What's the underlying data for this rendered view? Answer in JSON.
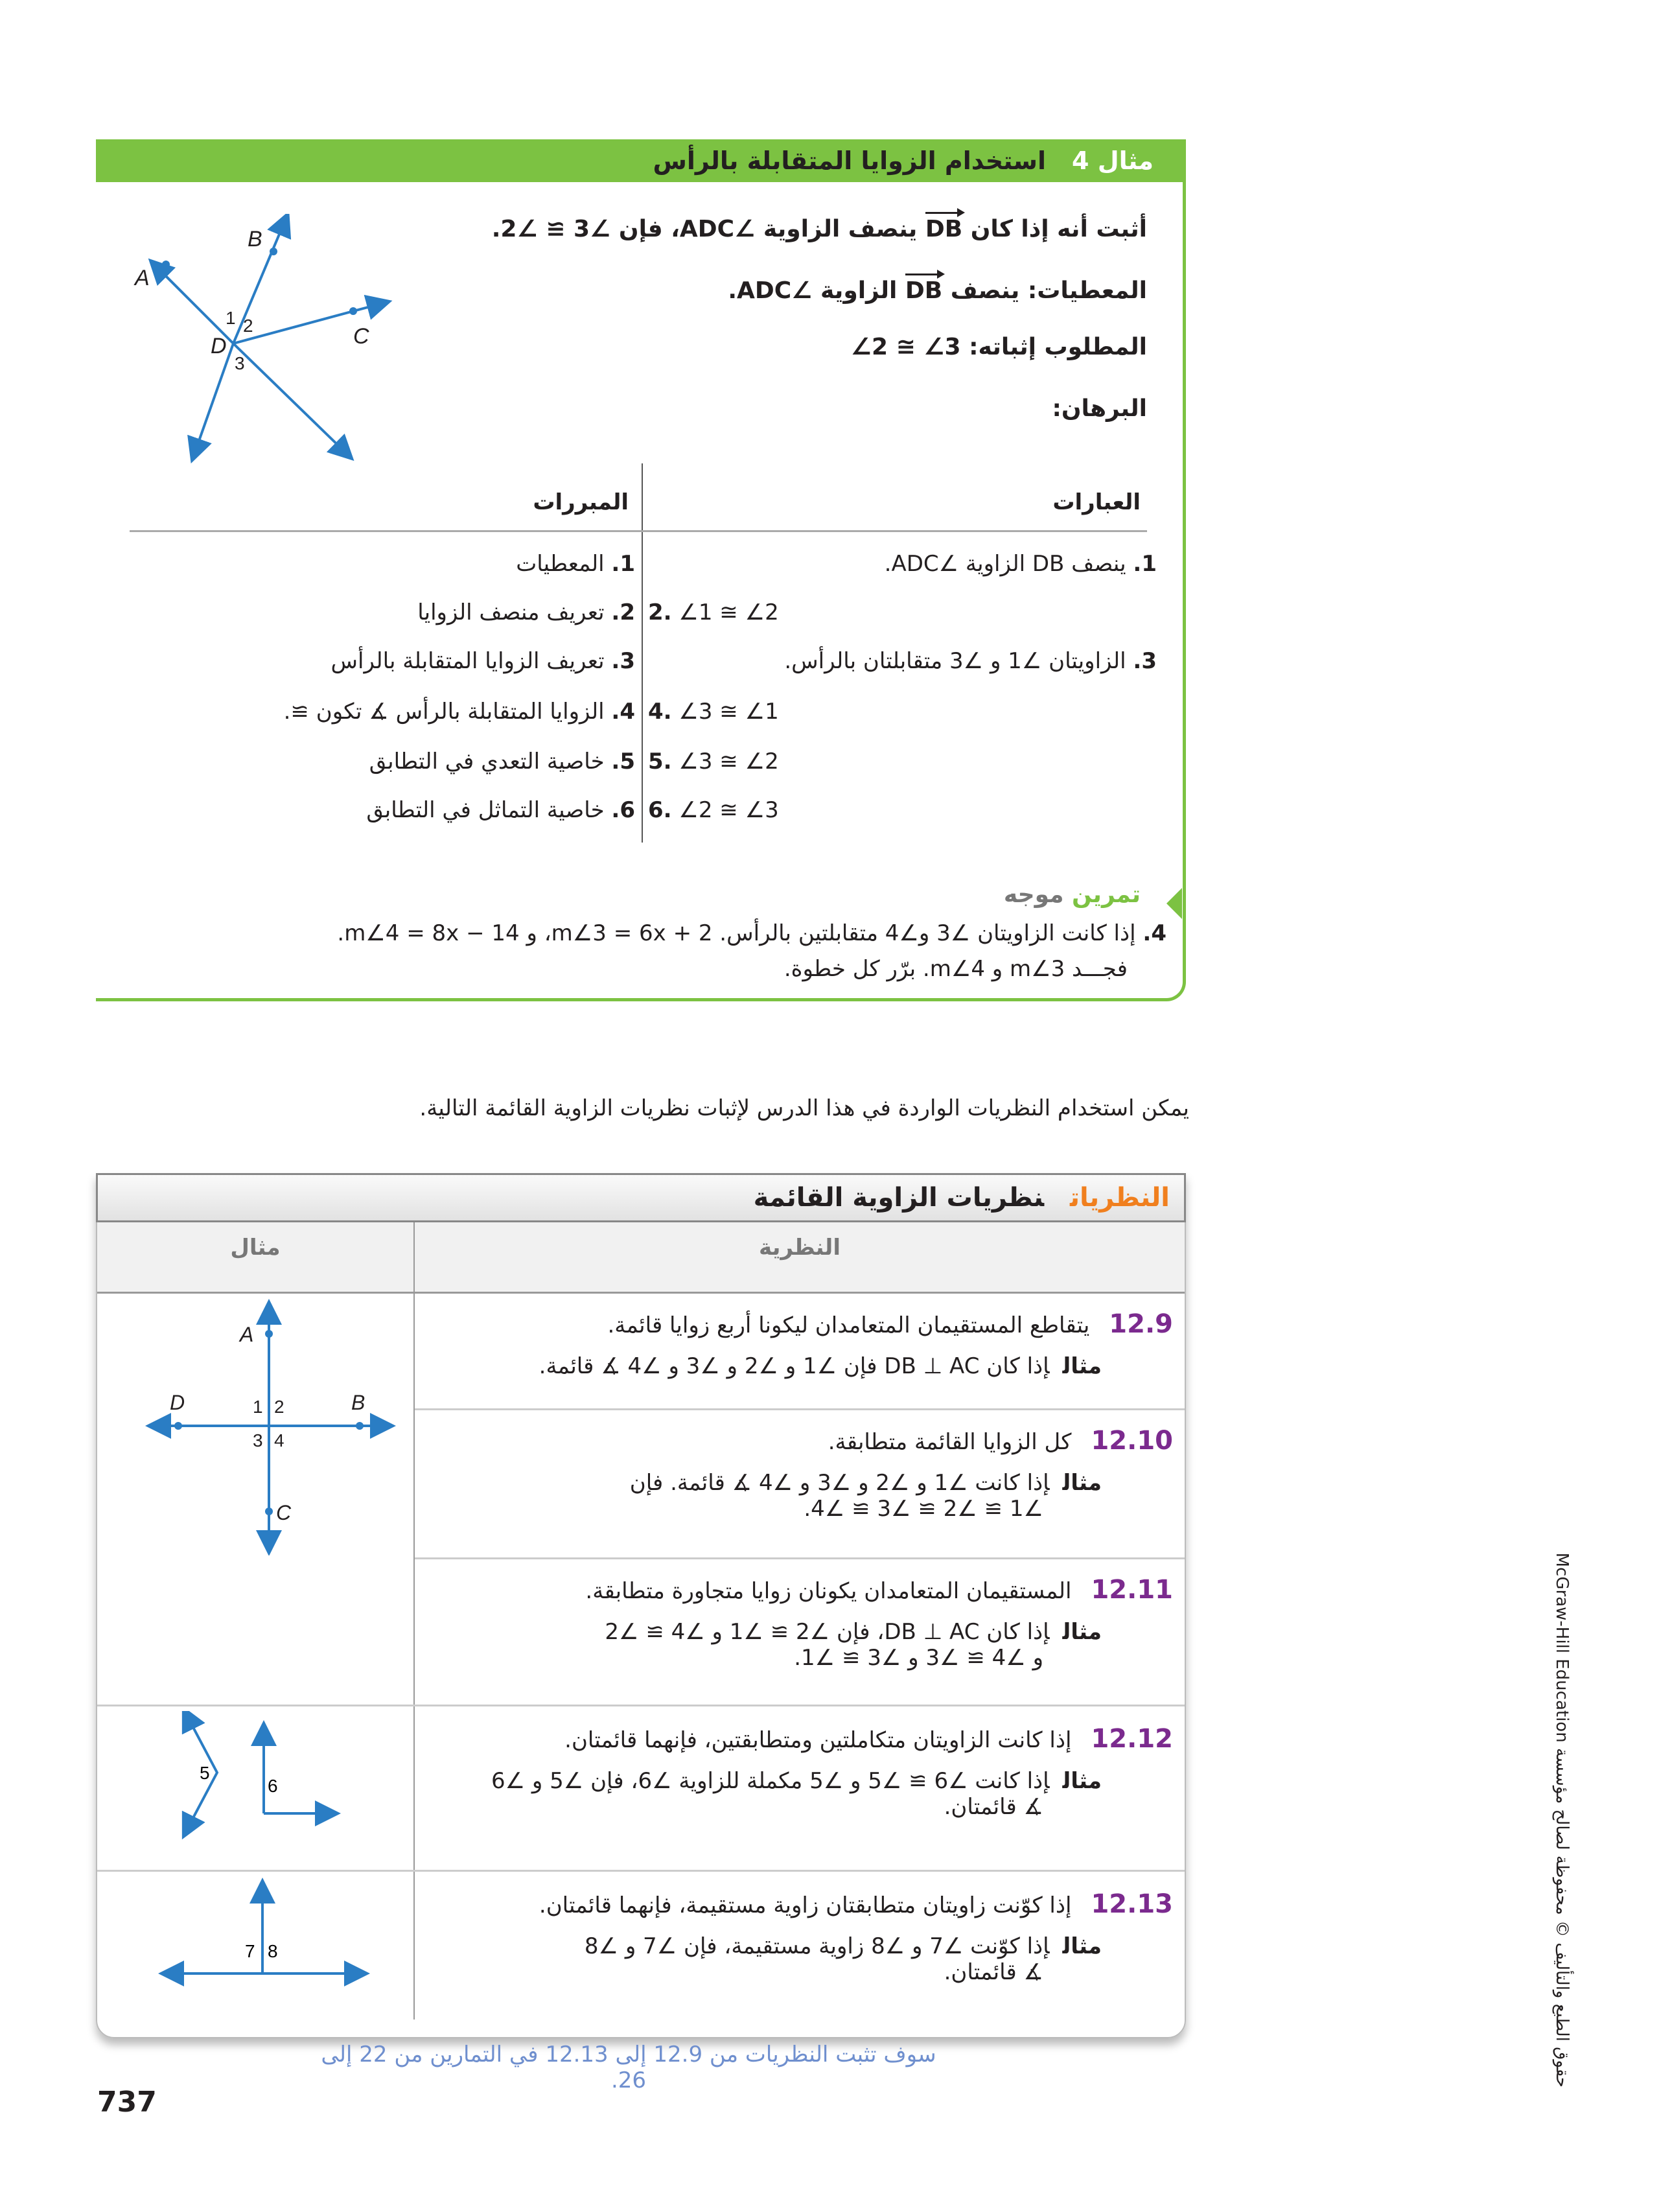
{
  "example": {
    "label": "مثال 4",
    "title": "استخدام الزوايا المتقابلة بالرأس",
    "prove_statement": {
      "pre": "أثبت أنه إذا كان",
      "ray": "DB",
      "post": "ينصف الزاوية ∠ADC، فإن ∠3 ≅ ∠2."
    },
    "given": {
      "label": "المعطيات:",
      "pre": "ينصف",
      "ray": "DB",
      "post": "الزاوية ∠ADC."
    },
    "prove": {
      "label": "المطلوب إثباته:",
      "value": "∠2 ≅ ∠3"
    },
    "proof_label": "البرهان:",
    "diagram_labels": {
      "A": "A",
      "B": "B",
      "C": "C",
      "D": "D",
      "n1": "1",
      "n2": "2",
      "n3": "3"
    },
    "proof_table": {
      "statements_header": "العبارات",
      "reasons_header": "المبررات",
      "rows": [
        {
          "statement_num": "1.",
          "statement": "ينصف DB الزاوية ∠ADC.",
          "reason_num": "1.",
          "reason": "المعطيات"
        },
        {
          "statement_num": "2.",
          "statement": "∠1 ≅ ∠2",
          "reason_num": "2.",
          "reason": "تعريف منصف الزوايا"
        },
        {
          "statement_num": "3.",
          "statement": "الزاويتان ∠1 و ∠3 متقابلتان بالرأس.",
          "reason_num": "3.",
          "reason": "تعريف الزوايا المتقابلة بالرأس"
        },
        {
          "statement_num": "4.",
          "statement": "∠3 ≅ ∠1",
          "reason_num": "4.",
          "reason": "الزوايا المتقابلة بالرأس ∡ تكون ≅."
        },
        {
          "statement_num": "5.",
          "statement": "∠3 ≅ ∠2",
          "reason_num": "5.",
          "reason": "خاصية التعدي في التطابق"
        },
        {
          "statement_num": "6.",
          "statement": "∠2 ≅ ∠3",
          "reason_num": "6.",
          "reason": "خاصية التماثل في التطابق"
        }
      ]
    },
    "guided_practice": {
      "label_green": "تمرين",
      "label_gray": "موجه",
      "num": "4.",
      "line1": "إذا كانت الزاويتان ∠3 و∠4 متقابلتين بالرأس. m∠3 = 6x + 2، و m∠4 = 8x − 14.",
      "line2": "فجـــد m∠3 و m∠4. برّر كل خطوة."
    }
  },
  "intro_text": "يمكن استخدام النظريات الواردة في هذا الدرس لإثبات نظريات الزاوية القائمة التالية.",
  "theorems": {
    "label": "النظريات",
    "title": "نظريات الزاوية القائمة",
    "col_theorem": "النظرية",
    "col_example": "مثال",
    "example_word": "مثال",
    "items": [
      {
        "num": "12.9",
        "text": "يتقاطع المستقيمان المتعامدان ليكونا أربع زوايا قائمة.",
        "example": "إذا كان DB ⊥ AC فإن ∠1 و ∠2 و ∠3 و ∠4 ∡ قائمة."
      },
      {
        "num": "12.10",
        "text": "كل الزوايا القائمة متطابقة.",
        "example": "إذا كانت ∠1 و ∠2 و ∠3 و ∠4 ∡ قائمة. فإن",
        "example2": "∠1 ≅ ∠2 ≅ ∠3 ≅ ∠4."
      },
      {
        "num": "12.11",
        "text": "المستقيمان المتعامدان يكونان زوايا متجاورة متطابقة.",
        "example": "إذا كان DB ⊥ AC، فإن ∠2 ≅ ∠1 و ∠4 ≅ ∠2",
        "example2": "و ∠4 ≅ ∠3 و ∠3 ≅ ∠1."
      },
      {
        "num": "12.12",
        "text": "إذا كانت الزاويتان متكاملتين ومتطابقتين، فإنهما قائمتان.",
        "example": "إذا كانت ∠6 ≅ ∠5 و ∠5 مكملة للزاوية ∠6، فإن ∠5 و ∠6",
        "example2": "∡ قائمتان."
      },
      {
        "num": "12.13",
        "text": "إذا كوّنت زاويتان متطابقتان زاوية مستقيمة، فإنهما قائمتان.",
        "example": "إذا كوّنت ∠7 و ∠8 زاوية مستقيمة، فإن ∠7 و ∠8",
        "example2": "∡ قائمتان."
      }
    ],
    "fig1_labels": {
      "A": "A",
      "B": "B",
      "C": "C",
      "D": "D",
      "n1": "1",
      "n2": "2",
      "n3": "3",
      "n4": "4"
    },
    "fig2_labels": {
      "n5": "5",
      "n6": "6"
    },
    "fig3_labels": {
      "n7": "7",
      "n8": "8"
    }
  },
  "footer_note": "سوف تثبت النظريات من 12.9 إلى 12.13 في التمارين من 22 إلى 26.",
  "page_number": "737",
  "copyright": "حقوق الطبع والتأليف © محفوظة لصالح مؤسسة McGraw-Hill Education",
  "colors": {
    "green": "#7cc242",
    "orange": "#f07f1e",
    "purple": "#7b2a8e",
    "blue_figure": "#2a7dc4",
    "note_blue": "#6f8fce"
  }
}
